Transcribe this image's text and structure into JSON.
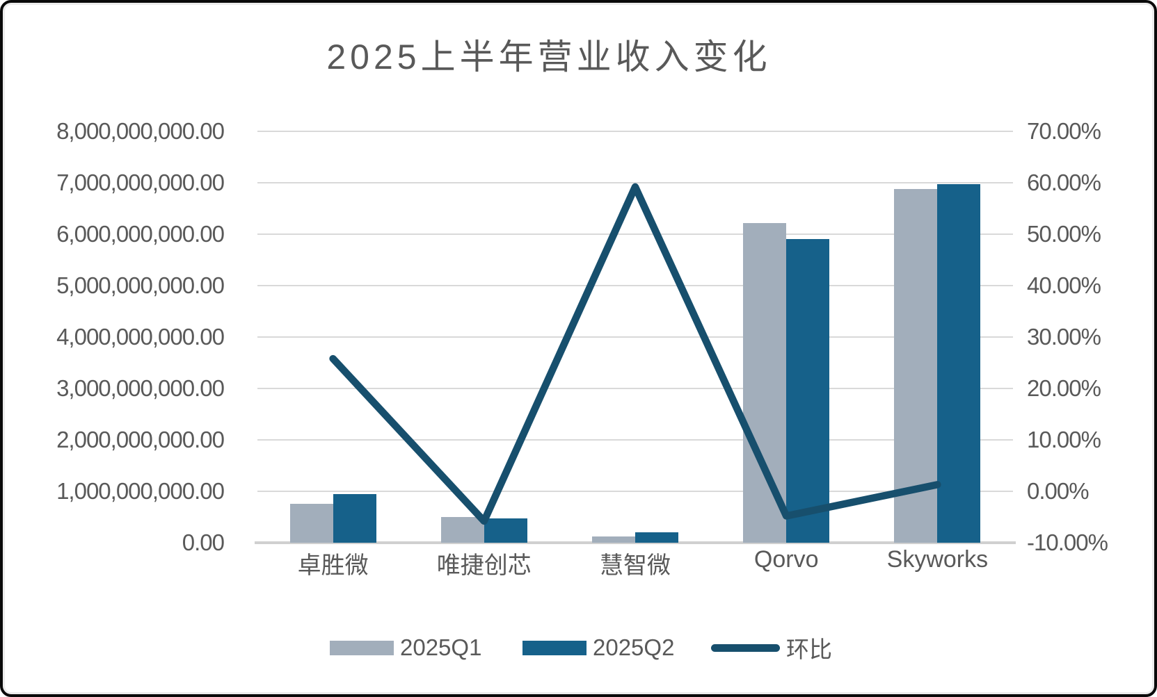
{
  "chart_data": {
    "type": "bar",
    "subtype": "grouped-bars-with-line-combo",
    "title": "2025上半年营业收入变化",
    "categories": [
      "卓胜微",
      "唯捷创芯",
      "慧智微",
      "Qorvo",
      "Skyworks"
    ],
    "series": [
      {
        "name": "2025Q1",
        "type": "bar",
        "axis": "left",
        "color": "#a2aebb",
        "values": [
          756000000,
          497000000,
          125000000,
          6220000000,
          6880000000
        ]
      },
      {
        "name": "2025Q2",
        "type": "bar",
        "axis": "left",
        "color": "#16618a",
        "values": [
          951000000,
          468000000,
          199000000,
          5910000000,
          6970000000
        ]
      },
      {
        "name": "环比",
        "type": "line",
        "axis": "right",
        "color": "#174f6d",
        "values_percent": [
          25.8,
          -5.8,
          59.2,
          -4.8,
          1.3
        ]
      }
    ],
    "left_axis": {
      "min": 0,
      "max": 8000000000,
      "step": 1000000000,
      "tick_labels": [
        "8,000,000,000.00",
        "7,000,000,000.00",
        "6,000,000,000.00",
        "5,000,000,000.00",
        "4,000,000,000.00",
        "3,000,000,000.00",
        "2,000,000,000.00",
        "1,000,000,000.00",
        "0.00"
      ]
    },
    "right_axis": {
      "min": -0.1,
      "max": 0.7,
      "step": 0.1,
      "tick_labels": [
        "70.00%",
        "60.00%",
        "50.00%",
        "40.00%",
        "30.00%",
        "20.00%",
        "10.00%",
        "0.00%",
        "-10.00%"
      ]
    },
    "legend": {
      "position": "bottom",
      "entries": [
        "2025Q1",
        "2025Q2",
        "环比"
      ]
    },
    "grid": true,
    "colors": {
      "grid": "#d9d9d9",
      "text": "#595959",
      "bar_q1": "#a2aebb",
      "bar_q2": "#16618a",
      "line": "#174f6d",
      "frame": "#0a0a0a",
      "background": "#ffffff"
    }
  }
}
